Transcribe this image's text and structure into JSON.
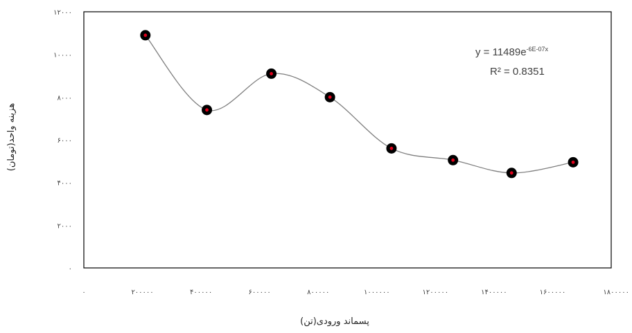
{
  "chart_data": {
    "type": "scatter",
    "xlabel": "پسماند ورودی(تن)",
    "ylabel": "هزینه واحد(تومان)",
    "xlim": [
      0,
      1800000
    ],
    "ylim": [
      0,
      12000
    ],
    "x_ticks": [
      0,
      200000,
      400000,
      600000,
      800000,
      1000000,
      1200000,
      1400000,
      1600000,
      1800000
    ],
    "x_tick_labels": [
      "۰",
      "۲۰۰۰۰۰",
      "۴۰۰۰۰۰",
      "۶۰۰۰۰۰",
      "۸۰۰۰۰۰",
      "۱۰۰۰۰۰۰",
      "۱۲۰۰۰۰۰",
      "۱۴۰۰۰۰۰",
      "۱۶۰۰۰۰۰",
      "۱۸۰۰۰۰۰"
    ],
    "y_ticks": [
      0,
      2000,
      4000,
      6000,
      8000,
      10000,
      12000
    ],
    "y_tick_labels": [
      "۰",
      "۲۰۰۰",
      "۴۰۰۰",
      "۶۰۰۰",
      "۸۰۰۰",
      "۱۰۰۰۰",
      "۱۲۰۰۰"
    ],
    "series": [
      {
        "x": [
          210000,
          420000,
          640000,
          840000,
          1050000,
          1260000,
          1460000,
          1670000
        ],
        "y": [
          10900,
          7400,
          9100,
          8000,
          5600,
          5050,
          4450,
          4950
        ]
      }
    ],
    "trendline": {
      "equation": "y = 11489e",
      "exponent": "-6E-07x",
      "r2": "R² = 0.8351"
    },
    "grid": false,
    "colors": {
      "marker_outer": "#000000",
      "marker_inner": "#e0001b",
      "line": "#7f7f7f",
      "frame": "#000000"
    }
  }
}
